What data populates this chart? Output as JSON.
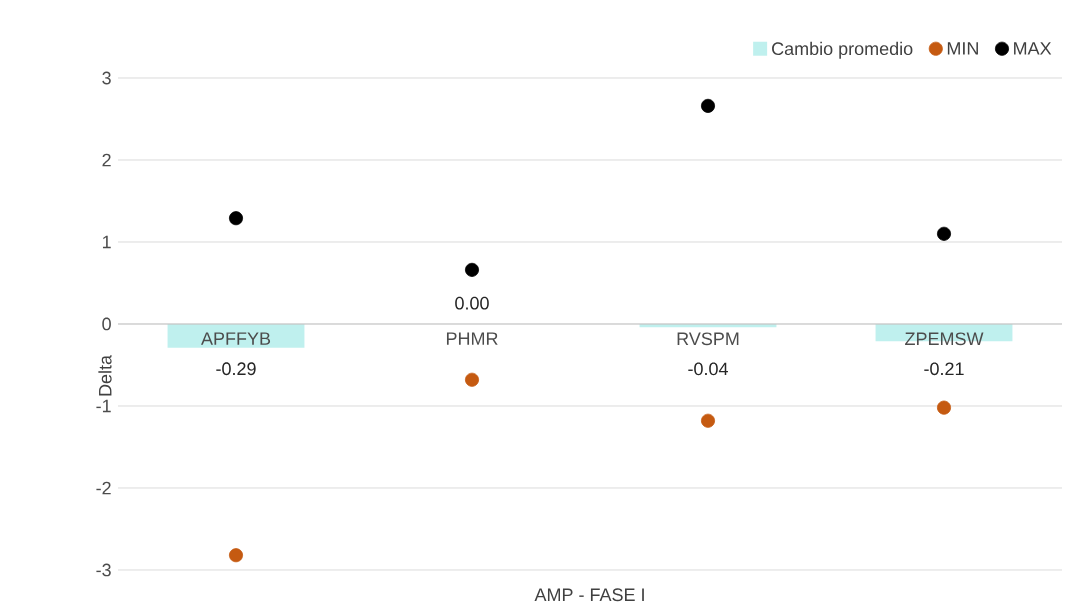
{
  "chart_data": {
    "type": "bar",
    "xlabel": "AMP - FASE I",
    "ylabel": "Delta",
    "categories": [
      "APFFYB",
      "PHMR",
      "RVSPM",
      "ZPEMSW"
    ],
    "series": [
      {
        "name": "Cambio promedio",
        "color": "#bff0ee",
        "values": [
          -0.29,
          0.0,
          -0.04,
          -0.21
        ],
        "value_labels": [
          "-0.29",
          "0.00",
          "-0.04",
          "-0.21"
        ]
      },
      {
        "name": "MIN",
        "type": "scatter",
        "color": "#c55a11",
        "x": [
          "APFFYB",
          "PHMR",
          "RVSPM",
          "ZPEMSW"
        ],
        "values": [
          -2.82,
          -0.68,
          -1.18,
          -1.02
        ]
      },
      {
        "name": "MAX",
        "type": "scatter",
        "color": "#000000",
        "x": [
          "APFFYB",
          "PHMR",
          "RVSPM",
          "ZPEMSW"
        ],
        "values": [
          1.29,
          0.66,
          2.66,
          1.1
        ]
      }
    ],
    "ylim": [
      -3,
      3
    ],
    "yticks": [
      -3,
      -2,
      -1,
      0,
      1,
      2,
      3
    ],
    "grid": "y",
    "legend": "top right",
    "marker": "circle"
  }
}
